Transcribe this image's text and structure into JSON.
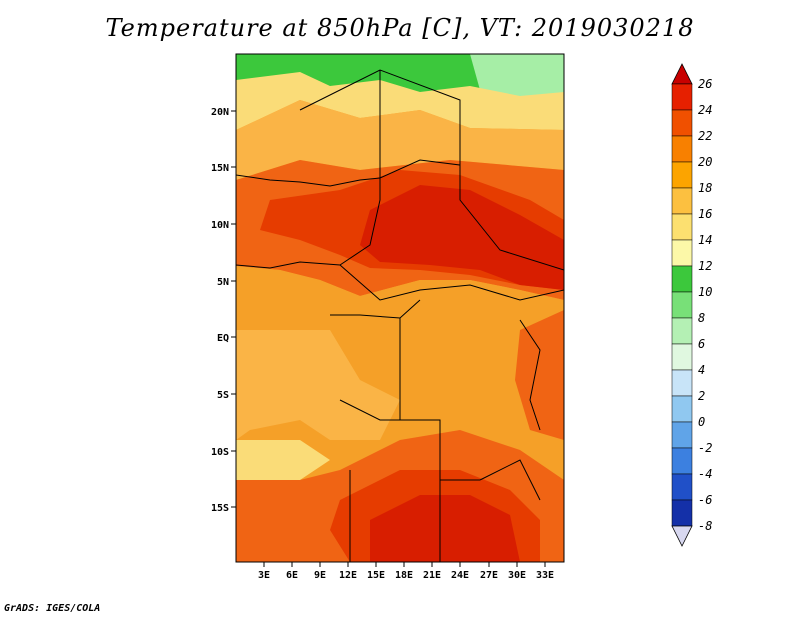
{
  "title": "Temperature at 850hPa [C], VT: 2019030218",
  "credit": "GrADS: IGES/COLA",
  "map": {
    "lat_labels": [
      "20N",
      "15N",
      "10N",
      "5N",
      "EQ",
      "5S",
      "10S",
      "15S"
    ],
    "lon_labels": [
      "3E",
      "6E",
      "9E",
      "12E",
      "15E",
      "18E",
      "21E",
      "24E",
      "27E",
      "30E",
      "33E"
    ]
  },
  "colorbar": {
    "levels": [
      "26",
      "24",
      "22",
      "20",
      "18",
      "16",
      "14",
      "12",
      "10",
      "8",
      "6",
      "4",
      "2",
      "0",
      "-2",
      "-4",
      "-6",
      "-8"
    ],
    "colors": [
      "#c80000",
      "#e62000",
      "#f05000",
      "#f88000",
      "#fca400",
      "#fcc040",
      "#fce070",
      "#fcf8a8",
      "#3cc83c",
      "#78e078",
      "#b4f0b4",
      "#e0f8e0",
      "#c8e4f8",
      "#90c8f0",
      "#60a4e8",
      "#3c80e0",
      "#2050c8",
      "#1430a8",
      "#000060"
    ]
  },
  "colors": {
    "deep_red": "#d81e00",
    "red": "#e63c00",
    "orange_red": "#f06414",
    "orange": "#f5a028",
    "light_orange": "#fab446",
    "pale": "#fadc78",
    "green": "#3cc83c"
  }
}
